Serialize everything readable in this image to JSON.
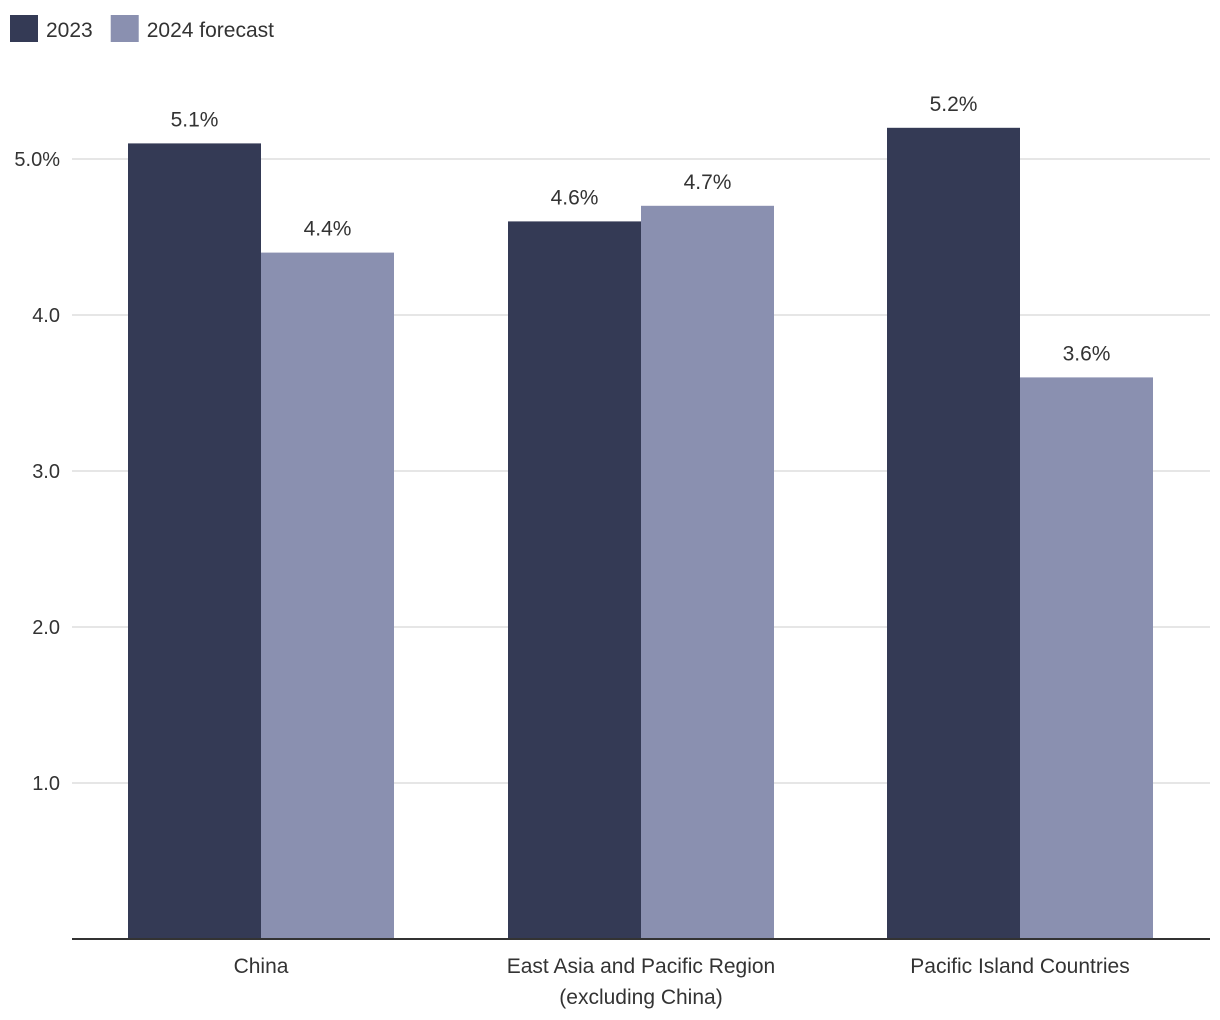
{
  "chart_data": {
    "type": "bar",
    "title": "",
    "xlabel": "",
    "ylabel": "",
    "categories": [
      [
        "China"
      ],
      [
        "East Asia and Pacific Region",
        "(excluding China)"
      ],
      [
        "Pacific Island Countries"
      ]
    ],
    "series": [
      {
        "name": "2023",
        "color": "#343a55",
        "values": [
          5.1,
          4.6,
          5.2
        ],
        "labels": [
          "5.1%",
          "4.6%",
          "5.2%"
        ]
      },
      {
        "name": "2024 forecast",
        "color": "#8a90b0",
        "values": [
          4.4,
          4.7,
          3.6
        ],
        "labels": [
          "4.4%",
          "4.7%",
          "3.6%"
        ]
      }
    ],
    "ylim": [
      0,
      5.5
    ],
    "yticks": [
      1.0,
      2.0,
      3.0,
      4.0,
      5.0
    ],
    "ytick_labels": [
      "1.0",
      "2.0",
      "3.0",
      "4.0",
      "5.0%"
    ],
    "grid": true,
    "legend_position": "top-left"
  }
}
